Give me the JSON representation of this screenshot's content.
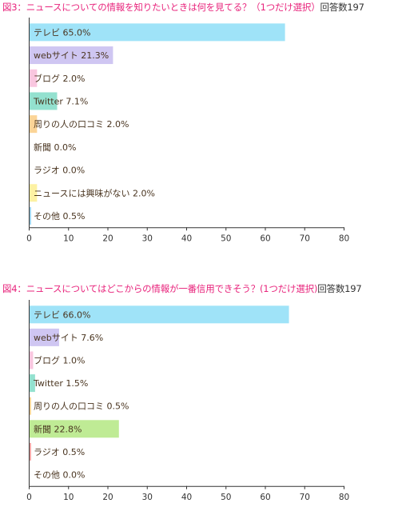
{
  "chart_data": [
    {
      "type": "bar",
      "orientation": "horizontal",
      "title": "図3：ニュースについての情報を知りたいときは何を見てる？（1つだけ選択）",
      "respondents_label": "回答数197",
      "categories": [
        "テレビ",
        "webサイト",
        "ブログ",
        "Twitter",
        "周りの人の口コミ",
        "新聞",
        "ラジオ",
        "ニュースには興味がない",
        "その他"
      ],
      "values": [
        65.0,
        21.3,
        2.0,
        7.1,
        2.0,
        0.0,
        0.0,
        2.0,
        0.5
      ],
      "labels": [
        "テレビ 65.0%",
        "webサイト 21.3%",
        "ブログ 2.0%",
        "Twitter 7.1%",
        "周りの人の口コミ 2.0%",
        "新聞 0.0%",
        "ラジオ 0.0%",
        "ニュースには興味がない 2.0%",
        "その他 0.5%"
      ],
      "colors": [
        "#9fe3f8",
        "#cfc6f2",
        "#f9c6df",
        "#93e1cf",
        "#fbd497",
        "#bfeb95",
        "#f4a6a6",
        "#fdf1a3",
        "#9fd6f0"
      ],
      "xlim": [
        0,
        80
      ],
      "xticks": [
        "0",
        "10",
        "20",
        "30",
        "40",
        "50",
        "60",
        "70",
        "80"
      ],
      "grid": false
    },
    {
      "type": "bar",
      "orientation": "horizontal",
      "title": "図4：ニュースについてはどこからの情報が一番信用できそう？(1つだけ選択)",
      "respondents_label": "回答数197",
      "categories": [
        "テレビ",
        "webサイト",
        "ブログ",
        "Twitter",
        "周りの人の口コミ",
        "新聞",
        "ラジオ",
        "その他"
      ],
      "values": [
        66.0,
        7.6,
        1.0,
        1.5,
        0.5,
        22.8,
        0.5,
        0.0
      ],
      "labels": [
        "テレビ 66.0%",
        "webサイト 7.6%",
        "ブログ 1.0%",
        "Twitter 1.5%",
        "周りの人の口コミ 0.5%",
        "新聞 22.8%",
        "ラジオ 0.5%",
        "その他 0.0%"
      ],
      "colors": [
        "#9fe3f8",
        "#cfc6f2",
        "#f9c6df",
        "#93e1cf",
        "#fbd497",
        "#bfeb95",
        "#f4a6a6",
        "#9fd6f0"
      ],
      "xlim": [
        0,
        80
      ],
      "xticks": [
        "0",
        "10",
        "20",
        "30",
        "40",
        "50",
        "60",
        "70",
        "80"
      ],
      "grid": false
    }
  ]
}
